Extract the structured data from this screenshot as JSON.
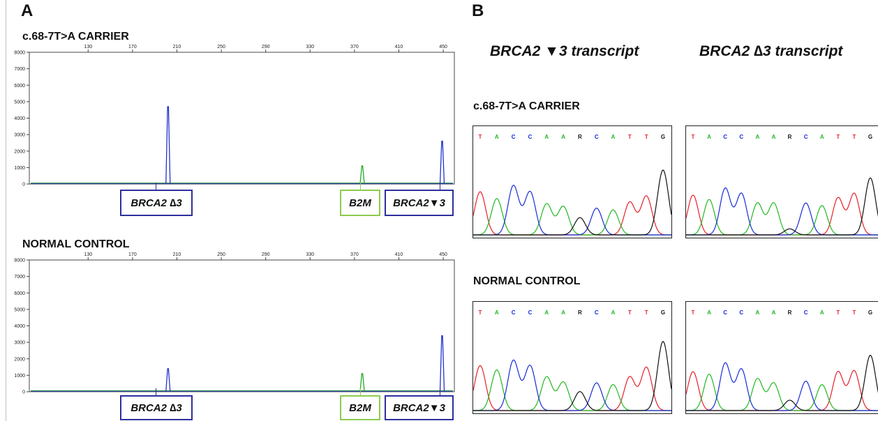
{
  "panel_a": {
    "letter": "A",
    "plots": [
      {
        "title": "c.68-7T>A CARRIER",
        "labels": [
          "BRCA2 ∆3",
          "B2M",
          "BRCA2▼3"
        ]
      },
      {
        "title": "NORMAL CONTROL",
        "labels": [
          "BRCA2 ∆3",
          "B2M",
          "BRCA2▼3"
        ]
      }
    ]
  },
  "panel_b": {
    "letter": "B",
    "col_titles": [
      "BRCA2 ▼3 transcript",
      "BRCA2 ∆3 transcript"
    ],
    "rows": [
      {
        "title": "c.68-7T>A CARRIER"
      },
      {
        "title": "NORMAL CONTROL"
      }
    ],
    "bases": [
      "T",
      "A",
      "C",
      "C",
      "A",
      "A",
      "R",
      "C",
      "A",
      "T",
      "T",
      "G"
    ]
  },
  "chart_data": [
    {
      "type": "line",
      "title": "c.68-7T>A CARRIER",
      "x_ticks": [
        130,
        170,
        210,
        250,
        290,
        330,
        370,
        410,
        450
      ],
      "y_ticks": [
        0,
        1000,
        2000,
        3000,
        4000,
        5000,
        6000,
        7000,
        8000
      ],
      "xlim": [
        77,
        460
      ],
      "ylim": [
        0,
        8000
      ],
      "series": [
        {
          "color": "#2233cc",
          "peaks": [
            {
              "x": 202,
              "y": 4700
            },
            {
              "x": 449,
              "y": 2600
            }
          ]
        },
        {
          "color": "#22aa22",
          "peaks": [
            {
              "x": 377,
              "y": 1100
            }
          ]
        }
      ]
    },
    {
      "type": "line",
      "title": "NORMAL CONTROL",
      "x_ticks": [
        130,
        170,
        210,
        250,
        290,
        330,
        370,
        410,
        450
      ],
      "y_ticks": [
        0,
        1000,
        2000,
        3000,
        4000,
        5000,
        6000,
        7000,
        8000
      ],
      "xlim": [
        77,
        460
      ],
      "ylim": [
        0,
        8000
      ],
      "series": [
        {
          "color": "#2233cc",
          "peaks": [
            {
              "x": 202,
              "y": 1400
            },
            {
              "x": 449,
              "y": 3400
            }
          ]
        },
        {
          "color": "#22aa22",
          "peaks": [
            {
              "x": 377,
              "y": 1100
            }
          ]
        }
      ]
    }
  ],
  "colors": {
    "T": "#e8202a",
    "A": "#22b822",
    "C": "#1a2bd6",
    "G": "#111111",
    "R": "#111111",
    "box_blue": "#2d2f9e",
    "box_green": "#8ccb4f"
  }
}
